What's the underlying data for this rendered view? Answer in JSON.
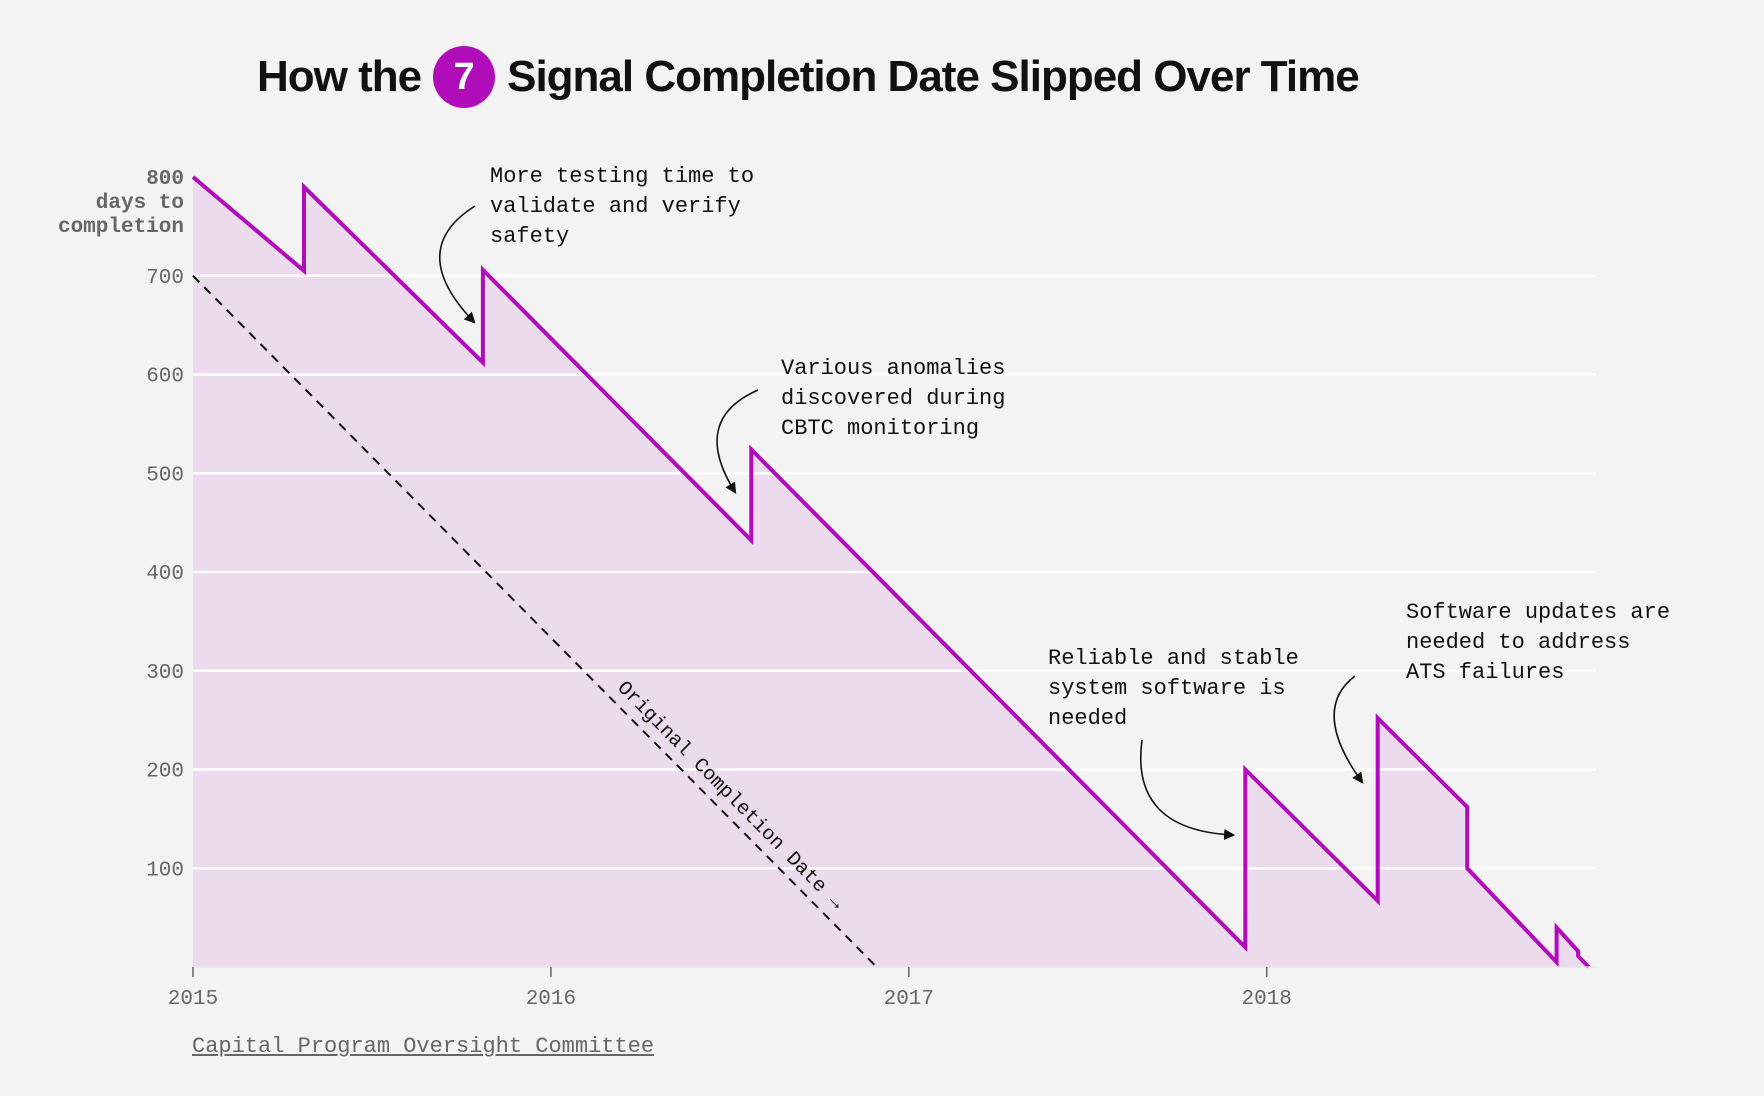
{
  "title": {
    "before": "How the",
    "route": "7",
    "after": "Signal Completion Date Slipped Over Time",
    "route_color": "#b10cb9"
  },
  "source": {
    "label": "Capital Program Oversight Committee"
  },
  "chart_data": {
    "type": "area",
    "ylabel": [
      "800",
      "days to",
      "completion"
    ],
    "ylim": [
      0,
      800
    ],
    "y_ticks": [
      100,
      200,
      300,
      400,
      500,
      600,
      700
    ],
    "x_ticks": [
      "2015",
      "2016",
      "2017",
      "2018"
    ],
    "xlim": [
      2015.0,
      2018.92
    ],
    "grid": true,
    "line_color": "#b10cb9",
    "fill_color": "#ecdbec",
    "series": [
      {
        "values": [
          [
            2015.0,
            800
          ],
          [
            2015.31,
            705
          ],
          [
            2015.31,
            790
          ],
          [
            2015.81,
            612
          ],
          [
            2015.81,
            706
          ],
          [
            2016.56,
            432
          ],
          [
            2016.56,
            524
          ],
          [
            2017.94,
            20
          ],
          [
            2017.94,
            200
          ],
          [
            2018.31,
            67
          ],
          [
            2018.31,
            252
          ],
          [
            2018.56,
            162
          ],
          [
            2018.56,
            100
          ],
          [
            2018.81,
            5
          ],
          [
            2018.81,
            40
          ],
          [
            2018.87,
            16
          ],
          [
            2018.87,
            11
          ],
          [
            2018.9,
            0
          ]
        ]
      }
    ],
    "reference_line": {
      "label": "Original Completion Date",
      "values": [
        [
          2015.0,
          700
        ],
        [
          2016.91,
          0
        ]
      ]
    },
    "annotations": [
      {
        "lines": [
          "More testing time to",
          "validate and verify",
          "safety"
        ],
        "x": 2015.81,
        "y": 670
      },
      {
        "lines": [
          "Various anomalies",
          "discovered during",
          "CBTC monitoring"
        ],
        "x": 2016.56,
        "y": 490
      },
      {
        "lines": [
          "Reliable and stable",
          "system software is",
          "needed"
        ],
        "x": 2017.94,
        "y": 138
      },
      {
        "lines": [
          "Software updates are",
          "needed to address",
          "ATS failures"
        ],
        "x": 2018.31,
        "y": 195
      }
    ]
  }
}
